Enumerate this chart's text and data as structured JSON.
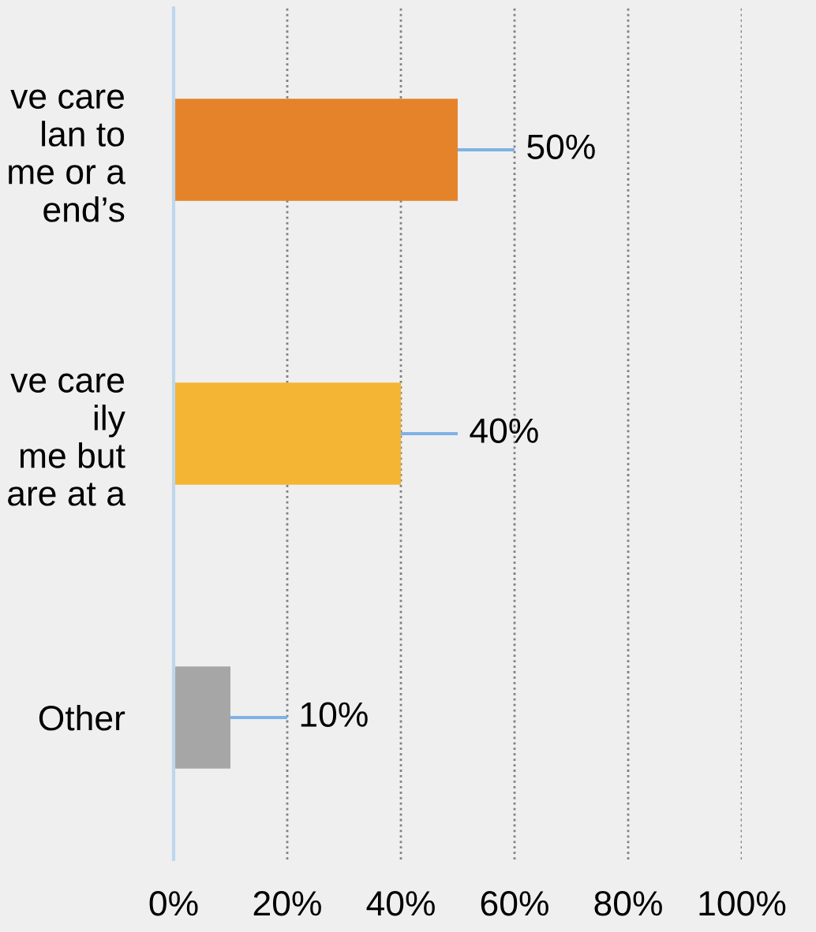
{
  "chart_data": {
    "type": "bar",
    "orientation": "horizontal",
    "categories": [
      "ve care\nlan to\nme or a\nend’s",
      "ve care\nily\nme but\nare at a",
      "Other"
    ],
    "values": [
      50,
      40,
      10
    ],
    "colors": [
      "#e5832a",
      "#f4b434",
      "#a6a6a6"
    ],
    "value_labels": [
      "50%",
      "40%",
      "10%"
    ],
    "xlim": [
      0,
      100
    ],
    "xticks": [
      {
        "value": 0,
        "label": "0%"
      },
      {
        "value": 20,
        "label": "20%"
      },
      {
        "value": 40,
        "label": "40%"
      },
      {
        "value": 60,
        "label": "60%"
      },
      {
        "value": 80,
        "label": "80%"
      },
      {
        "value": 100,
        "label": "100%"
      }
    ],
    "grid": "x",
    "legend": false
  }
}
